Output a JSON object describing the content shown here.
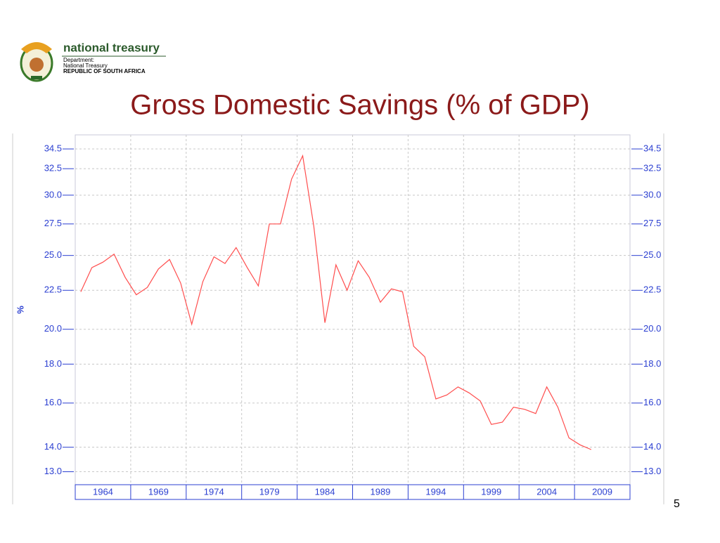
{
  "header": {
    "org": "national treasury",
    "dept": "Department:",
    "dept_name": "National Treasury",
    "country": "REPUBLIC OF SOUTH AFRICA"
  },
  "page_number": "5",
  "chart_data": {
    "type": "line",
    "title": "Gross Domestic Savings (% of GDP)",
    "y_label": "%",
    "x": [
      1962,
      1963,
      1964,
      1965,
      1966,
      1967,
      1968,
      1969,
      1970,
      1971,
      1972,
      1973,
      1974,
      1975,
      1976,
      1977,
      1978,
      1979,
      1980,
      1981,
      1982,
      1983,
      1984,
      1985,
      1986,
      1987,
      1988,
      1989,
      1990,
      1991,
      1992,
      1993,
      1994,
      1995,
      1996,
      1997,
      1998,
      1999,
      2000,
      2001,
      2002,
      2003,
      2004,
      2005,
      2006,
      2007,
      2008
    ],
    "values": [
      22.4,
      24.1,
      24.5,
      25.1,
      23.4,
      22.2,
      22.7,
      24.0,
      24.7,
      23.0,
      20.3,
      23.1,
      24.9,
      24.4,
      25.6,
      24.1,
      22.8,
      27.5,
      27.5,
      31.5,
      33.8,
      27.3,
      20.4,
      24.3,
      22.5,
      24.6,
      23.4,
      21.7,
      22.6,
      22.4,
      19.0,
      18.4,
      16.2,
      16.4,
      16.8,
      16.5,
      16.1,
      15.0,
      15.1,
      15.8,
      15.7,
      15.5,
      16.8,
      15.8,
      14.4,
      14.1,
      13.9
    ],
    "color": "#ff4d4d",
    "xlim": [
      1961.5,
      2011.5
    ],
    "xticks": [
      {
        "value": 1964,
        "label": "1964"
      },
      {
        "value": 1969,
        "label": "1969"
      },
      {
        "value": 1974,
        "label": "1974"
      },
      {
        "value": 1979,
        "label": "1979"
      },
      {
        "value": 1984,
        "label": "1984"
      },
      {
        "value": 1989,
        "label": "1989"
      },
      {
        "value": 1994,
        "label": "1994"
      },
      {
        "value": 1999,
        "label": "1999"
      },
      {
        "value": 2004,
        "label": "2004"
      },
      {
        "value": 2009,
        "label": "2009"
      }
    ],
    "ylim": [
      12.5,
      36
    ],
    "log_y": true,
    "yticks": [
      {
        "value": 13,
        "label": "13.0"
      },
      {
        "value": 14,
        "label": "14.0"
      },
      {
        "value": 16,
        "label": "16.0"
      },
      {
        "value": 18,
        "label": "18.0"
      },
      {
        "value": 20,
        "label": "20.0"
      },
      22.5,
      {
        "value": 25,
        "label": "25.0"
      },
      27.5,
      {
        "value": 30,
        "label": "30.0"
      },
      32.5,
      34.5
    ],
    "grid": true
  }
}
